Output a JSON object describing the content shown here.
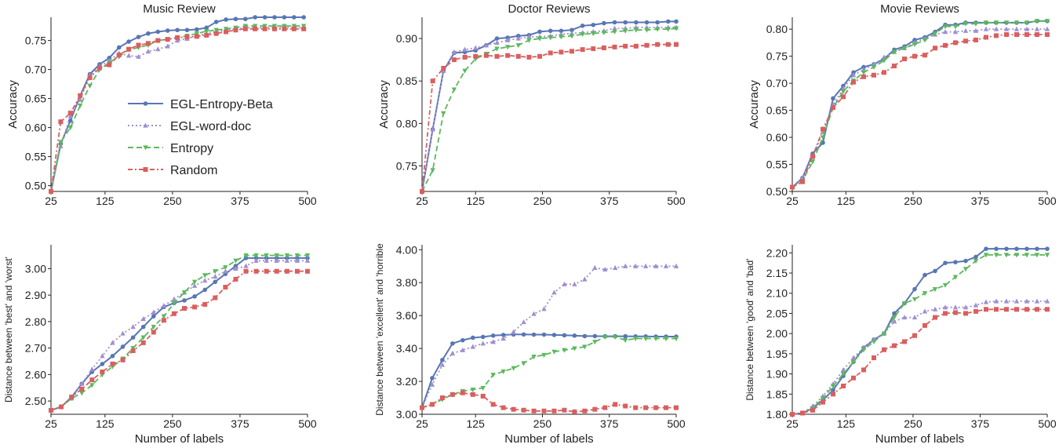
{
  "figure": {
    "legend": {
      "placement": "panel-1 lower-right",
      "entries": [
        {
          "label": "EGL-Entropy-Beta",
          "color": "#5876b3",
          "style": "solid",
          "marker": "circle"
        },
        {
          "label": "EGL-word-doc",
          "color": "#9f8fd0",
          "style": "dotted",
          "marker": "triangle"
        },
        {
          "label": "Entropy",
          "color": "#5cb85c",
          "style": "dashed",
          "marker": "triangle-down"
        },
        {
          "label": "Random",
          "color": "#d95f5f",
          "style": "dashdot",
          "marker": "square"
        }
      ]
    }
  },
  "chart_data": [
    {
      "type": "line",
      "title": "Music Review",
      "xlabel": "",
      "ylabel": "Accuracy",
      "xlim": [
        25,
        500
      ],
      "ylim": [
        0.49,
        0.79
      ],
      "xticks": [
        "25",
        "125",
        "250",
        "375",
        "500"
      ],
      "yticks": [
        "0.50",
        "0.55",
        "0.60",
        "0.65",
        "0.70",
        "0.75"
      ],
      "x": [
        25,
        43,
        61,
        79,
        97,
        115,
        133,
        151,
        169,
        187,
        205,
        223,
        241,
        259,
        277,
        295,
        313,
        331,
        349,
        367,
        385,
        403,
        421,
        439,
        457,
        475,
        493
      ],
      "series": [
        {
          "name": "EGL-Entropy-Beta",
          "values": [
            0.49,
            0.572,
            0.612,
            0.655,
            0.692,
            0.709,
            0.72,
            0.738,
            0.748,
            0.756,
            0.762,
            0.765,
            0.767,
            0.768,
            0.768,
            0.769,
            0.772,
            0.782,
            0.786,
            0.787,
            0.787,
            0.79,
            0.79,
            0.79,
            0.79,
            0.79,
            0.79
          ]
        },
        {
          "name": "EGL-word-doc",
          "values": [
            0.49,
            0.568,
            0.62,
            0.648,
            0.69,
            0.705,
            0.715,
            0.728,
            0.724,
            0.722,
            0.731,
            0.735,
            0.74,
            0.75,
            0.753,
            0.758,
            0.762,
            0.765,
            0.768,
            0.77,
            0.772,
            0.772,
            0.772,
            0.772,
            0.772,
            0.772,
            0.772
          ]
        },
        {
          "name": "Entropy",
          "values": [
            0.49,
            0.575,
            0.6,
            0.638,
            0.672,
            0.7,
            0.712,
            0.722,
            0.734,
            0.738,
            0.742,
            0.75,
            0.752,
            0.755,
            0.758,
            0.762,
            0.766,
            0.768,
            0.77,
            0.772,
            0.775,
            0.775,
            0.775,
            0.775,
            0.775,
            0.775,
            0.775
          ]
        },
        {
          "name": "Random",
          "values": [
            0.49,
            0.61,
            0.625,
            0.655,
            0.686,
            0.703,
            0.708,
            0.725,
            0.735,
            0.742,
            0.745,
            0.75,
            0.752,
            0.755,
            0.756,
            0.757,
            0.759,
            0.762,
            0.765,
            0.768,
            0.77,
            0.77,
            0.77,
            0.77,
            0.77,
            0.77,
            0.77
          ]
        }
      ]
    },
    {
      "type": "line",
      "title": "Doctor Reviews",
      "xlabel": "",
      "ylabel": "Accuracy",
      "xlim": [
        25,
        500
      ],
      "ylim": [
        0.72,
        0.925
      ],
      "xticks": [
        "25",
        "125",
        "250",
        "375",
        "500"
      ],
      "yticks": [
        "0.75",
        "0.80",
        "0.85",
        "0.90"
      ],
      "x": [
        25,
        45,
        65,
        85,
        105,
        125,
        145,
        165,
        185,
        205,
        225,
        245,
        265,
        285,
        305,
        325,
        345,
        365,
        385,
        405,
        425,
        445,
        465,
        485,
        500
      ],
      "series": [
        {
          "name": "EGL-Entropy-Beta",
          "values": [
            0.72,
            0.793,
            0.862,
            0.883,
            0.884,
            0.886,
            0.892,
            0.9,
            0.901,
            0.903,
            0.904,
            0.908,
            0.909,
            0.909,
            0.91,
            0.915,
            0.916,
            0.918,
            0.919,
            0.919,
            0.919,
            0.919,
            0.919,
            0.92,
            0.92
          ]
        },
        {
          "name": "EGL-word-doc",
          "values": [
            0.72,
            0.793,
            0.862,
            0.884,
            0.887,
            0.889,
            0.892,
            0.895,
            0.898,
            0.9,
            0.902,
            0.902,
            0.903,
            0.905,
            0.906,
            0.907,
            0.908,
            0.909,
            0.912,
            0.912,
            0.913,
            0.913,
            0.913,
            0.913,
            0.913
          ]
        },
        {
          "name": "Entropy",
          "values": [
            0.72,
            0.745,
            0.812,
            0.84,
            0.862,
            0.876,
            0.882,
            0.888,
            0.89,
            0.892,
            0.898,
            0.9,
            0.901,
            0.902,
            0.903,
            0.905,
            0.906,
            0.907,
            0.908,
            0.909,
            0.91,
            0.91,
            0.911,
            0.911,
            0.912
          ]
        },
        {
          "name": "Random",
          "values": [
            0.72,
            0.85,
            0.865,
            0.875,
            0.878,
            0.879,
            0.88,
            0.879,
            0.88,
            0.879,
            0.878,
            0.879,
            0.883,
            0.884,
            0.885,
            0.887,
            0.888,
            0.889,
            0.89,
            0.891,
            0.891,
            0.892,
            0.893,
            0.893,
            0.893
          ]
        }
      ]
    },
    {
      "type": "line",
      "title": "Movie Reviews",
      "xlabel": "",
      "ylabel": "Accuracy",
      "xlim": [
        25,
        500
      ],
      "ylim": [
        0.5,
        0.822
      ],
      "xticks": [
        "25",
        "125",
        "250",
        "375",
        "500"
      ],
      "yticks": [
        "0.50",
        "0.55",
        "0.60",
        "0.65",
        "0.70",
        "0.75",
        "0.80"
      ],
      "x": [
        25,
        44,
        63,
        82,
        101,
        120,
        139,
        158,
        177,
        196,
        215,
        234,
        253,
        272,
        291,
        310,
        329,
        348,
        367,
        386,
        405,
        424,
        443,
        462,
        481,
        500
      ],
      "series": [
        {
          "name": "EGL-Entropy-Beta",
          "values": [
            0.508,
            0.525,
            0.57,
            0.59,
            0.672,
            0.695,
            0.72,
            0.73,
            0.735,
            0.745,
            0.762,
            0.768,
            0.78,
            0.785,
            0.795,
            0.808,
            0.808,
            0.812,
            0.812,
            0.812,
            0.812,
            0.812,
            0.812,
            0.812,
            0.815,
            0.815
          ]
        },
        {
          "name": "EGL-word-doc",
          "values": [
            0.508,
            0.525,
            0.565,
            0.61,
            0.66,
            0.69,
            0.715,
            0.725,
            0.735,
            0.748,
            0.758,
            0.765,
            0.775,
            0.783,
            0.79,
            0.795,
            0.795,
            0.797,
            0.797,
            0.8,
            0.8,
            0.8,
            0.8,
            0.8,
            0.8,
            0.8
          ]
        },
        {
          "name": "Entropy",
          "values": [
            0.508,
            0.52,
            0.555,
            0.6,
            0.655,
            0.685,
            0.705,
            0.72,
            0.73,
            0.742,
            0.758,
            0.765,
            0.772,
            0.78,
            0.792,
            0.805,
            0.805,
            0.81,
            0.81,
            0.812,
            0.812,
            0.812,
            0.812,
            0.812,
            0.815,
            0.815
          ]
        },
        {
          "name": "Random",
          "values": [
            0.508,
            0.518,
            0.565,
            0.615,
            0.655,
            0.675,
            0.702,
            0.712,
            0.715,
            0.72,
            0.732,
            0.745,
            0.75,
            0.752,
            0.765,
            0.77,
            0.775,
            0.778,
            0.78,
            0.785,
            0.788,
            0.79,
            0.79,
            0.79,
            0.79,
            0.79
          ]
        }
      ]
    },
    {
      "type": "line",
      "title": "",
      "xlabel": "Number of labels",
      "ylabel": "Distance between 'best' and 'worst'",
      "xlim": [
        25,
        500
      ],
      "ylim": [
        2.45,
        3.09
      ],
      "xticks": [
        "25",
        "125",
        "250",
        "375",
        "500"
      ],
      "yticks": [
        "2.50",
        "2.60",
        "2.70",
        "2.80",
        "2.90",
        "3.00"
      ],
      "x": [
        25,
        44,
        63,
        82,
        101,
        120,
        139,
        158,
        177,
        196,
        215,
        234,
        253,
        272,
        291,
        310,
        329,
        348,
        367,
        386,
        405,
        424,
        443,
        462,
        481,
        500
      ],
      "series": [
        {
          "name": "EGL-Entropy-Beta",
          "values": [
            2.465,
            2.478,
            2.515,
            2.565,
            2.61,
            2.64,
            2.67,
            2.705,
            2.74,
            2.78,
            2.82,
            2.855,
            2.87,
            2.88,
            2.895,
            2.92,
            2.95,
            2.98,
            3.01,
            3.04,
            3.04,
            3.04,
            3.04,
            3.04,
            3.04,
            3.04
          ]
        },
        {
          "name": "EGL-word-doc",
          "values": [
            2.465,
            2.478,
            2.51,
            2.565,
            2.62,
            2.67,
            2.72,
            2.755,
            2.78,
            2.81,
            2.835,
            2.86,
            2.885,
            2.91,
            2.935,
            2.955,
            2.97,
            2.99,
            3.0,
            3.01,
            3.03,
            3.03,
            3.03,
            3.03,
            3.03,
            3.03
          ]
        },
        {
          "name": "Entropy",
          "values": [
            2.465,
            2.478,
            2.51,
            2.53,
            2.56,
            2.6,
            2.63,
            2.66,
            2.7,
            2.74,
            2.78,
            2.82,
            2.87,
            2.91,
            2.95,
            2.975,
            2.99,
            3.005,
            3.03,
            3.05,
            3.05,
            3.05,
            3.05,
            3.05,
            3.05,
            3.05
          ]
        },
        {
          "name": "Random",
          "values": [
            2.465,
            2.478,
            2.515,
            2.545,
            2.58,
            2.61,
            2.64,
            2.655,
            2.69,
            2.72,
            2.76,
            2.805,
            2.83,
            2.85,
            2.855,
            2.865,
            2.89,
            2.93,
            2.96,
            2.99,
            2.99,
            2.99,
            2.99,
            2.99,
            2.99,
            2.99
          ]
        }
      ]
    },
    {
      "type": "line",
      "title": "",
      "xlabel": "Number of labels",
      "ylabel": "Distance between 'excellent' and 'horrible",
      "xlim": [
        25,
        500
      ],
      "ylim": [
        3.0,
        4.03
      ],
      "xticks": [
        "25",
        "125",
        "250",
        "375",
        "500"
      ],
      "yticks": [
        "3.00",
        "3.20",
        "3.40",
        "3.60",
        "3.80",
        "4.00"
      ],
      "x": [
        25,
        44,
        63,
        82,
        101,
        120,
        139,
        158,
        177,
        196,
        215,
        234,
        253,
        272,
        291,
        310,
        329,
        348,
        367,
        386,
        405,
        424,
        443,
        462,
        481,
        500
      ],
      "series": [
        {
          "name": "EGL-Entropy-Beta",
          "values": [
            3.04,
            3.22,
            3.33,
            3.43,
            3.45,
            3.465,
            3.47,
            3.478,
            3.482,
            3.485,
            3.485,
            3.484,
            3.484,
            3.482,
            3.48,
            3.478,
            3.475,
            3.475,
            3.474,
            3.474,
            3.474,
            3.473,
            3.473,
            3.472,
            3.472,
            3.472
          ]
        },
        {
          "name": "EGL-word-doc",
          "values": [
            3.04,
            3.18,
            3.3,
            3.37,
            3.39,
            3.41,
            3.43,
            3.44,
            3.46,
            3.5,
            3.56,
            3.61,
            3.64,
            3.74,
            3.79,
            3.79,
            3.82,
            3.89,
            3.88,
            3.89,
            3.9,
            3.9,
            3.9,
            3.9,
            3.9,
            3.9
          ]
        },
        {
          "name": "Entropy",
          "values": [
            3.04,
            3.06,
            3.09,
            3.12,
            3.14,
            3.15,
            3.16,
            3.24,
            3.26,
            3.28,
            3.31,
            3.35,
            3.36,
            3.38,
            3.39,
            3.4,
            3.41,
            3.44,
            3.47,
            3.47,
            3.45,
            3.46,
            3.46,
            3.46,
            3.46,
            3.46
          ]
        },
        {
          "name": "Random",
          "values": [
            3.04,
            3.06,
            3.1,
            3.12,
            3.13,
            3.12,
            3.11,
            3.06,
            3.04,
            3.03,
            3.025,
            3.02,
            3.02,
            3.02,
            3.025,
            3.015,
            3.02,
            3.03,
            3.04,
            3.06,
            3.05,
            3.04,
            3.04,
            3.04,
            3.04,
            3.04
          ]
        }
      ]
    },
    {
      "type": "line",
      "title": "",
      "xlabel": "Number of labels",
      "ylabel": "Distance between 'good' and 'bad'",
      "xlim": [
        25,
        500
      ],
      "ylim": [
        1.8,
        2.22
      ],
      "xticks": [
        "25",
        "125",
        "250",
        "375",
        "500"
      ],
      "yticks": [
        "1.80",
        "1.85",
        "1.90",
        "1.95",
        "2.00",
        "2.05",
        "2.10",
        "2.15",
        "2.20"
      ],
      "x": [
        25,
        44,
        63,
        82,
        101,
        120,
        139,
        158,
        177,
        196,
        215,
        234,
        253,
        272,
        291,
        310,
        329,
        348,
        367,
        386,
        405,
        424,
        443,
        462,
        481,
        500
      ],
      "series": [
        {
          "name": "EGL-Entropy-Beta",
          "values": [
            1.8,
            1.803,
            1.815,
            1.835,
            1.86,
            1.895,
            1.93,
            1.965,
            1.985,
            2.0,
            2.05,
            2.075,
            2.11,
            2.145,
            2.155,
            2.175,
            2.177,
            2.18,
            2.19,
            2.21,
            2.21,
            2.21,
            2.21,
            2.21,
            2.21,
            2.21
          ]
        },
        {
          "name": "EGL-word-doc",
          "values": [
            1.8,
            1.803,
            1.82,
            1.845,
            1.875,
            1.91,
            1.94,
            1.965,
            1.985,
            2.0,
            2.03,
            2.04,
            2.04,
            2.055,
            2.06,
            2.065,
            2.065,
            2.065,
            2.07,
            2.078,
            2.08,
            2.08,
            2.08,
            2.08,
            2.08,
            2.08
          ]
        },
        {
          "name": "Entropy",
          "values": [
            1.8,
            1.803,
            1.815,
            1.84,
            1.87,
            1.9,
            1.93,
            1.96,
            1.98,
            2.0,
            2.04,
            2.075,
            2.085,
            2.1,
            2.11,
            2.12,
            2.14,
            2.16,
            2.18,
            2.195,
            2.195,
            2.195,
            2.195,
            2.195,
            2.195,
            2.195
          ]
        },
        {
          "name": "Random",
          "values": [
            1.8,
            1.803,
            1.81,
            1.83,
            1.85,
            1.87,
            1.89,
            1.91,
            1.94,
            1.96,
            1.97,
            1.98,
            1.995,
            2.02,
            2.04,
            2.05,
            2.052,
            2.05,
            2.055,
            2.06,
            2.06,
            2.06,
            2.06,
            2.06,
            2.06,
            2.06
          ]
        }
      ]
    }
  ]
}
